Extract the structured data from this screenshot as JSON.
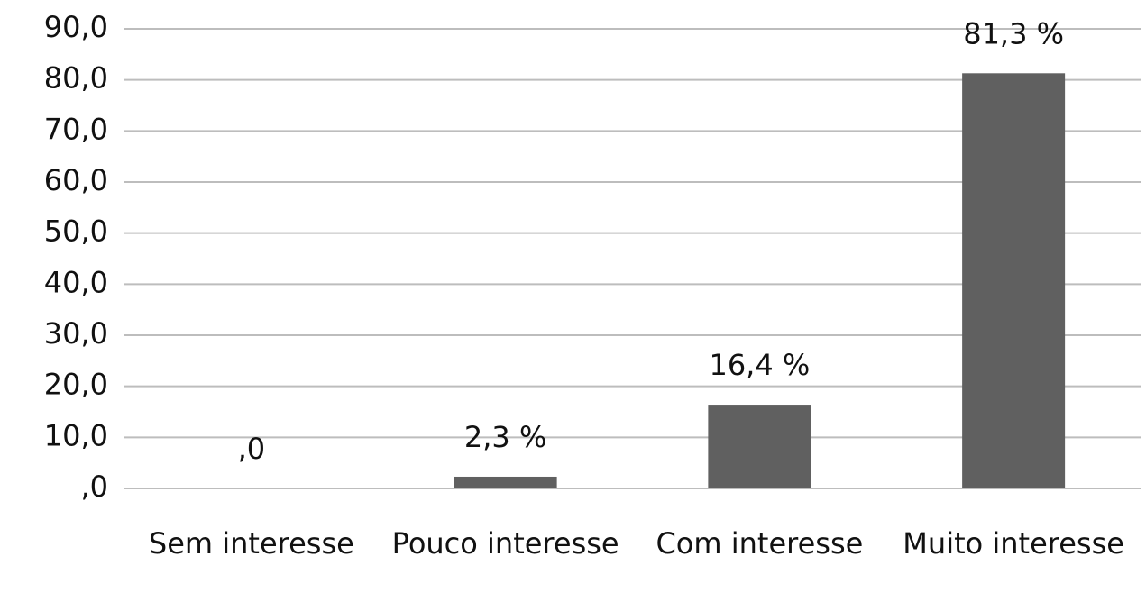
{
  "chart_data": {
    "type": "bar",
    "categories": [
      "Sem interesse",
      "Pouco interesse",
      "Com interesse",
      "Muito interesse"
    ],
    "values": [
      0,
      2.3,
      16.4,
      81.3
    ],
    "value_labels": [
      ",0",
      "2,3 %",
      "16,4 %",
      "81,3 %"
    ],
    "color": "#606060",
    "ylim": [
      0,
      90
    ],
    "yticks": [
      {
        "value": 0,
        "label": ",0"
      },
      {
        "value": 10,
        "label": "10,0"
      },
      {
        "value": 20,
        "label": "20,0"
      },
      {
        "value": 30,
        "label": "30,0"
      },
      {
        "value": 40,
        "label": "40,0"
      },
      {
        "value": 50,
        "label": "50,0"
      },
      {
        "value": 60,
        "label": "60,0"
      },
      {
        "value": 70,
        "label": "70,0"
      },
      {
        "value": 80,
        "label": "80,0"
      },
      {
        "value": 90,
        "label": "90,0"
      }
    ],
    "grid": true
  }
}
